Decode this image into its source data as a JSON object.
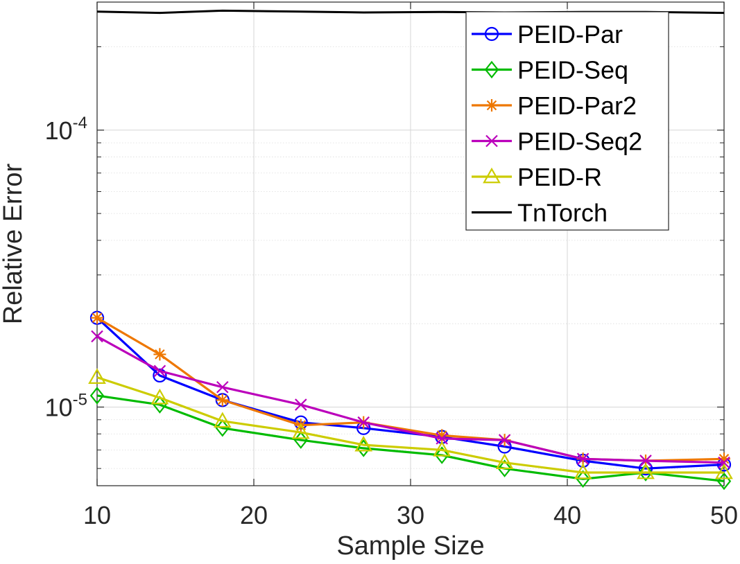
{
  "chart_data": {
    "type": "line",
    "title": "",
    "xlabel": "Sample Size",
    "ylabel": "Relative Error",
    "xscale": "linear",
    "yscale": "log",
    "xlim": [
      10,
      50
    ],
    "ylim": [
      5.2e-06,
      0.00029
    ],
    "x_ticks": [
      10,
      20,
      30,
      40,
      50
    ],
    "x_tick_labels": [
      "10",
      "20",
      "30",
      "40",
      "50"
    ],
    "y_ticks": [
      1e-05,
      0.0001
    ],
    "y_tick_labels": [
      {
        "base": "10",
        "exp": "-5"
      },
      {
        "base": "10",
        "exp": "-4"
      }
    ],
    "grid": true,
    "legend_position": "top-right",
    "x": [
      10,
      14,
      18,
      23,
      27,
      32,
      36,
      41,
      45,
      50
    ],
    "series": [
      {
        "name": "PEID-Par",
        "color": "#0000ff",
        "marker": "circle",
        "values": [
          2.1e-05,
          1.3e-05,
          1.06e-05,
          8.8e-06,
          8.4e-06,
          7.8e-06,
          7.2e-06,
          6.4e-06,
          6e-06,
          6.2e-06
        ]
      },
      {
        "name": "PEID-Seq",
        "color": "#00bb00",
        "marker": "diamond",
        "values": [
          1.1e-05,
          1.02e-05,
          8.4e-06,
          7.6e-06,
          7.1e-06,
          6.7e-06,
          6e-06,
          5.5e-06,
          5.8e-06,
          5.4e-06
        ]
      },
      {
        "name": "PEID-Par2",
        "color": "#ee7700",
        "marker": "asterisk",
        "values": [
          2.1e-05,
          1.55e-05,
          1.06e-05,
          8.6e-06,
          8.8e-06,
          7.9e-06,
          7.6e-06,
          6.5e-06,
          6.4e-06,
          6.5e-06
        ]
      },
      {
        "name": "PEID-Seq2",
        "color": "#bb00bb",
        "marker": "cross",
        "values": [
          1.8e-05,
          1.35e-05,
          1.18e-05,
          1.02e-05,
          8.8e-06,
          7.7e-06,
          7.6e-06,
          6.5e-06,
          6.4e-06,
          6.3e-06
        ]
      },
      {
        "name": "PEID-R",
        "color": "#cccc00",
        "marker": "triangle",
        "values": [
          1.28e-05,
          1.08e-05,
          8.9e-06,
          8.1e-06,
          7.3e-06,
          7e-06,
          6.3e-06,
          5.8e-06,
          5.8e-06,
          5.8e-06
        ]
      },
      {
        "name": "TnTorch",
        "color": "#000000",
        "marker": "none",
        "values": [
          0.000268,
          0.000265,
          0.00027,
          0.000268,
          0.000266,
          0.000267,
          0.000266,
          0.000267,
          0.000267,
          0.000265
        ]
      }
    ]
  }
}
